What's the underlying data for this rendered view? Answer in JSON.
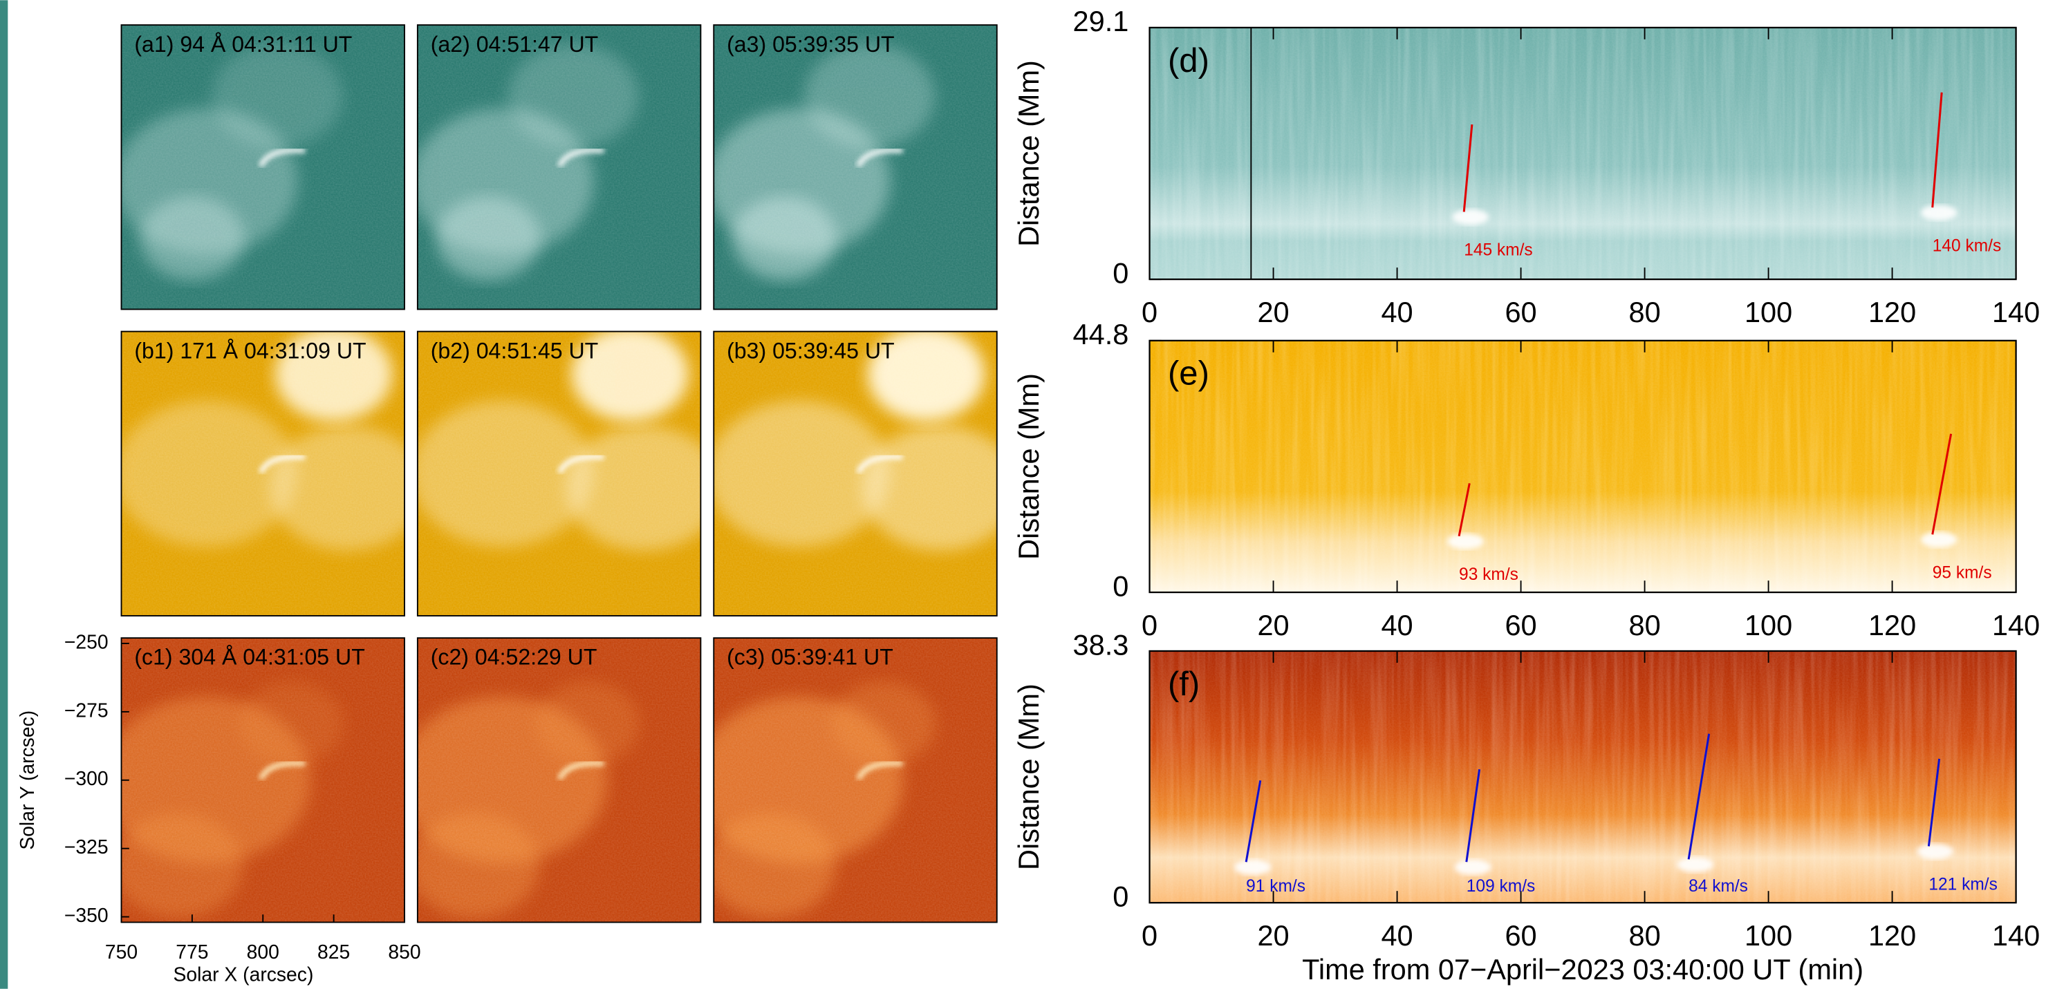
{
  "image_panels": [
    {
      "label": "(a1) 94 Å 04:31:11 UT"
    },
    {
      "label": "(a2) 04:51:47 UT"
    },
    {
      "label": "(a3) 05:39:35 UT"
    },
    {
      "label": "(b1) 171 Å 04:31:09 UT"
    },
    {
      "label": "(b2) 04:51:45 UT"
    },
    {
      "label": "(b3) 05:39:45 UT"
    },
    {
      "label": "(c1) 304 Å 04:31:05 UT"
    },
    {
      "label": "(c2) 04:52:29 UT"
    },
    {
      "label": "(c3) 05:39:41 UT"
    }
  ],
  "image_axes": {
    "xlabel": "Solar X (arcsec)",
    "ylabel": "Solar Y (arcsec)",
    "xlim": [
      750,
      850
    ],
    "ylim": [
      -248,
      -352
    ],
    "xticks": [
      750,
      775,
      800,
      825,
      850
    ],
    "yticks": [
      {
        "value": -250,
        "label": "−250"
      },
      {
        "value": -275,
        "label": "−275"
      },
      {
        "value": -300,
        "label": "−300"
      },
      {
        "value": -325,
        "label": "−325"
      },
      {
        "value": -350,
        "label": "−350"
      }
    ]
  },
  "stackplots": [
    {
      "label": "(d)",
      "ylabel": "Distance (Mm)",
      "xlim": [
        0,
        140
      ],
      "ylim": [
        0,
        29.1
      ],
      "xticks": [
        0,
        20,
        40,
        60,
        80,
        100,
        120,
        140
      ],
      "yticks": [
        0,
        29.1
      ],
      "fit_color": "#e00000",
      "vline": 16.4,
      "fits": [
        {
          "t": [
            50.8,
            52.1
          ],
          "d": [
            7.8,
            17.9
          ],
          "label": "145 km/s"
        },
        {
          "t": [
            126.5,
            128.0
          ],
          "d": [
            8.3,
            21.6
          ],
          "label": "140 km/s"
        }
      ]
    },
    {
      "label": "(e)",
      "ylabel": "Distance (Mm)",
      "xlim": [
        0,
        140
      ],
      "ylim": [
        0,
        44.8
      ],
      "xticks": [
        0,
        20,
        40,
        60,
        80,
        100,
        120,
        140
      ],
      "yticks": [
        0,
        44.8
      ],
      "fit_color": "#e00000",
      "fits": [
        {
          "t": [
            50.0,
            51.7
          ],
          "d": [
            10.0,
            19.4
          ],
          "label": "93 km/s"
        },
        {
          "t": [
            126.5,
            129.5
          ],
          "d": [
            10.3,
            28.2
          ],
          "label": "95 km/s"
        }
      ]
    },
    {
      "label": "(f)",
      "ylabel": "Distance (Mm)",
      "xlim": [
        0,
        140
      ],
      "ylim": [
        0,
        38.3
      ],
      "xticks": [
        0,
        20,
        40,
        60,
        80,
        100,
        120,
        140
      ],
      "yticks": [
        0,
        38.3
      ],
      "fit_color": "#1010d0",
      "fits": [
        {
          "t": [
            15.6,
            17.9
          ],
          "d": [
            6.2,
            18.6
          ],
          "label": "91 km/s"
        },
        {
          "t": [
            51.2,
            53.3
          ],
          "d": [
            6.2,
            20.3
          ],
          "label": "109 km/s"
        },
        {
          "t": [
            87.1,
            90.4
          ],
          "d": [
            6.6,
            25.7
          ],
          "label": "84 km/s"
        },
        {
          "t": [
            125.9,
            127.6
          ],
          "d": [
            8.6,
            21.9
          ],
          "label": "121 km/s"
        }
      ]
    }
  ],
  "xlabel": "Time from 07−April−2023 03:40:00 UT (min)"
}
